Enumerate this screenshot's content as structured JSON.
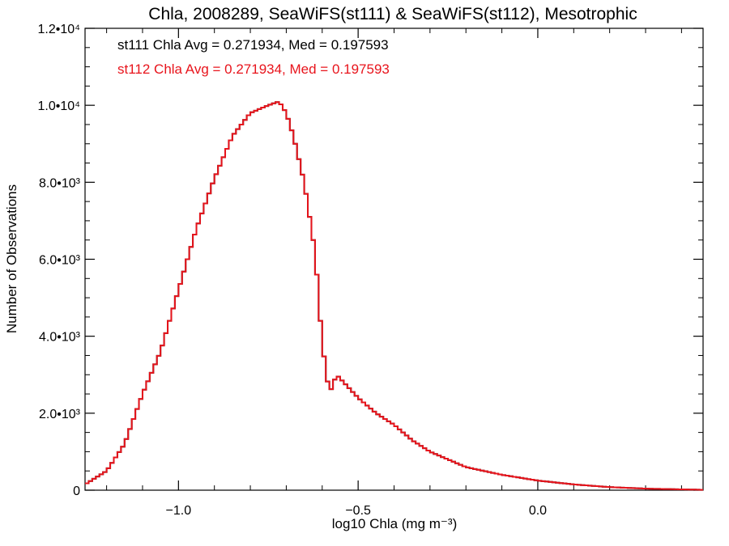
{
  "chart_data": {
    "type": "line",
    "style": "histogram-steps",
    "title": "Chla, 2008289, SeaWiFS(st111) & SeaWiFS(st112), Mesotrophic",
    "xlabel": "log10 Chla (mg m⁻³)",
    "ylabel": "Number of Observations",
    "xlim": [
      -1.26,
      0.46
    ],
    "ylim": [
      0,
      12000
    ],
    "grid": false,
    "x_ticks": [
      {
        "value": -1.0,
        "label": "−1.0"
      },
      {
        "value": -0.5,
        "label": "−0.5"
      },
      {
        "value": 0.0,
        "label": "0.0"
      }
    ],
    "y_ticks": [
      {
        "value": 0,
        "label": "0"
      },
      {
        "value": 2000,
        "label": "2.0•10³"
      },
      {
        "value": 4000,
        "label": "4.0•10³"
      },
      {
        "value": 6000,
        "label": "6.0•10³"
      },
      {
        "value": 8000,
        "label": "8.0•10³"
      },
      {
        "value": 10000,
        "label": "1.0•10⁴"
      },
      {
        "value": 12000,
        "label": "1.2•10⁴"
      }
    ],
    "annotations": [
      {
        "text": "st111 Chla Avg = 0.271934, Med = 0.197593",
        "color": "#000000"
      },
      {
        "text": "st112 Chla Avg = 0.271934, Med = 0.197593",
        "color": "#e8141c"
      }
    ],
    "series": [
      {
        "color": "#000000",
        "x": [
          -1.26,
          -1.2,
          -1.15,
          -1.1,
          -1.05,
          -1.0,
          -0.95,
          -0.9,
          -0.85,
          -0.8,
          -0.75,
          -0.72,
          -0.7,
          -0.68,
          -0.65,
          -0.62,
          -0.6,
          -0.58,
          -0.56,
          -0.54,
          -0.5,
          -0.45,
          -0.4,
          -0.35,
          -0.3,
          -0.25,
          -0.2,
          -0.1,
          0.0,
          0.1,
          0.2,
          0.3,
          0.46
        ],
        "y": [
          150,
          500,
          1200,
          2500,
          3600,
          5200,
          6800,
          8100,
          9200,
          9800,
          10000,
          10100,
          9800,
          9200,
          8000,
          6200,
          3800,
          2500,
          3000,
          2800,
          2400,
          2000,
          1700,
          1300,
          1000,
          800,
          600,
          400,
          250,
          150,
          80,
          40,
          10
        ]
      },
      {
        "color": "#e8141c",
        "x": [
          -1.26,
          -1.2,
          -1.15,
          -1.1,
          -1.05,
          -1.0,
          -0.95,
          -0.9,
          -0.85,
          -0.8,
          -0.75,
          -0.72,
          -0.7,
          -0.68,
          -0.65,
          -0.62,
          -0.6,
          -0.58,
          -0.56,
          -0.54,
          -0.5,
          -0.45,
          -0.4,
          -0.35,
          -0.3,
          -0.25,
          -0.2,
          -0.1,
          0.0,
          0.1,
          0.2,
          0.3,
          0.46
        ],
        "y": [
          150,
          500,
          1200,
          2500,
          3600,
          5200,
          6800,
          8100,
          9200,
          9800,
          10000,
          10100,
          9800,
          9200,
          8000,
          6200,
          3800,
          2500,
          3000,
          2800,
          2400,
          2000,
          1700,
          1300,
          1000,
          800,
          600,
          400,
          250,
          150,
          80,
          40,
          10
        ]
      }
    ]
  }
}
